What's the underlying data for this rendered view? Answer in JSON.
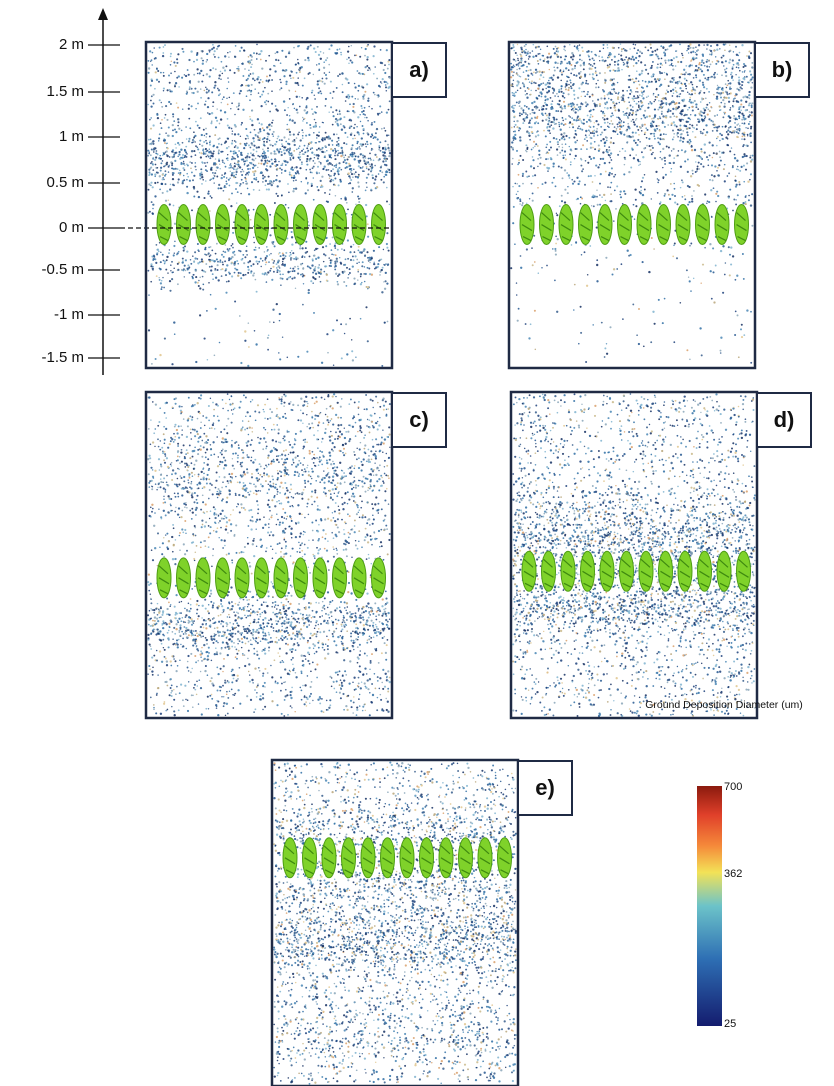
{
  "axis": {
    "ticks": [
      "2 m",
      "1.5 m",
      "1 m",
      "0.5 m",
      "0 m",
      "-0.5 m",
      "-1 m",
      "-1.5 m"
    ]
  },
  "panels": [
    {
      "label": "a)"
    },
    {
      "label": "b)"
    },
    {
      "label": "c)"
    },
    {
      "label": "d)"
    },
    {
      "label": "e)"
    }
  ],
  "colorbar": {
    "title": "Ground Deposition Diameter (um)",
    "ticks": [
      700,
      362,
      25
    ]
  }
}
